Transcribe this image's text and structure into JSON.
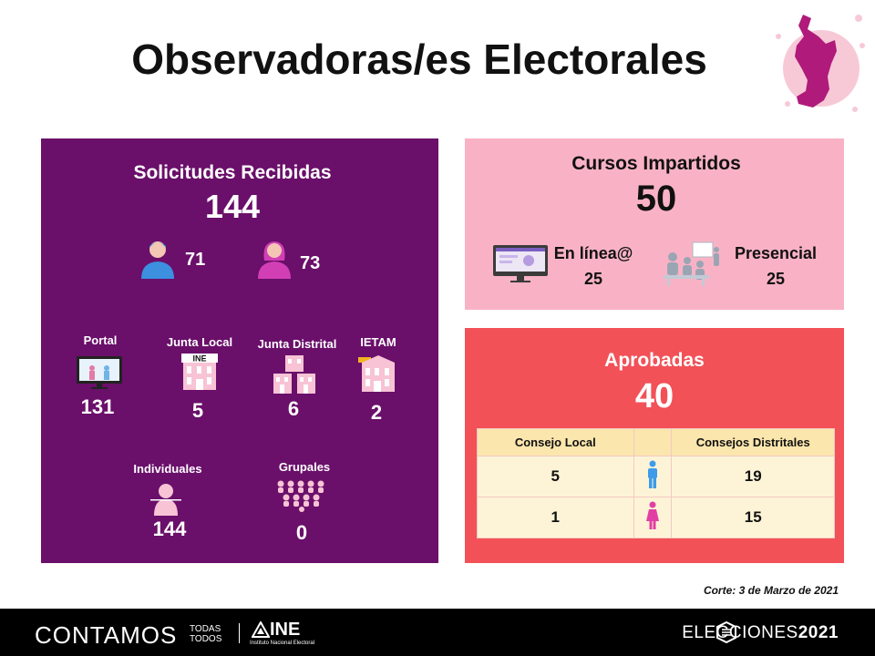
{
  "title": "Observadoras/es Electorales",
  "solicitudes": {
    "heading": "Solicitudes Recibidas",
    "total": "144",
    "men": "71",
    "women": "73",
    "sources": [
      {
        "label": "Portal",
        "value": "131"
      },
      {
        "label": "Junta Local",
        "value": "5"
      },
      {
        "label": "Junta Distrital",
        "value": "6"
      },
      {
        "label": "IETAM",
        "value": "2"
      }
    ],
    "types": [
      {
        "label": "Individuales",
        "value": "144"
      },
      {
        "label": "Grupales",
        "value": "0"
      }
    ]
  },
  "cursos": {
    "heading": "Cursos Impartidos",
    "total": "50",
    "online_label": "En línea@",
    "online_value": "25",
    "presencial_label": "Presencial",
    "presencial_value": "25"
  },
  "aprobadas": {
    "heading": "Aprobadas",
    "total": "40",
    "col_local": "Consejo Local",
    "col_distritales": "Consejos Distritales",
    "rows": [
      {
        "local": "5",
        "distritales": "19",
        "gender_icon": "male-icon"
      },
      {
        "local": "1",
        "distritales": "15",
        "gender_icon": "female-icon"
      }
    ]
  },
  "corte": "Corte: 3 de Marzo de 2021",
  "footer": {
    "contamos": "CONTAMOS",
    "todas": "TODAS",
    "todos": "TODOS",
    "ine": "INE",
    "ine_sub": "Instituto Nacional Electoral",
    "elecciones": "ELECCIONES",
    "year": "2021"
  },
  "colors": {
    "purple": "#6a0f6a",
    "pink": "#f9b2c5",
    "red": "#f25158",
    "blue_person": "#3d8fe0",
    "pink_person": "#d23fb5"
  }
}
